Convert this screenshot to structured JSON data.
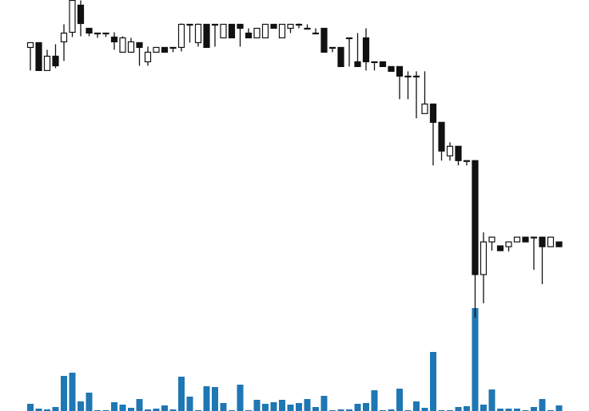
{
  "chart_data": {
    "type": "candlestick",
    "open": [
      341,
      347,
      312,
      330,
      348,
      360,
      394,
      365,
      359,
      359,
      354,
      335,
      335,
      347,
      323,
      335,
      341,
      341,
      341,
      370,
      347,
      370,
      370,
      353,
      370,
      370,
      359,
      353,
      353,
      370,
      353,
      365,
      370,
      365,
      359,
      365,
      341,
      341,
      353,
      323,
      353,
      323,
      323,
      317,
      317,
      305,
      305,
      258,
      270,
      247,
      205,
      217,
      199,
      199,
      56,
      97,
      92,
      91,
      97,
      103,
      103,
      103,
      91,
      97
    ],
    "high": [
      347,
      347,
      338,
      345,
      370,
      400,
      400,
      365,
      359,
      359,
      360,
      355,
      353,
      347,
      342,
      341,
      341,
      341,
      371,
      370,
      371,
      370,
      370,
      370,
      370,
      370,
      365,
      365,
      370,
      370,
      370,
      370,
      371,
      370,
      365,
      365,
      341,
      341,
      353,
      359,
      365,
      323,
      323,
      317,
      317,
      311,
      311,
      311,
      270,
      247,
      222,
      217,
      199,
      199,
      109,
      103,
      92,
      97,
      103,
      103,
      103,
      103,
      103,
      97
    ],
    "low": [
      312,
      312,
      312,
      315,
      324,
      354,
      355,
      355,
      353,
      354,
      338,
      335,
      335,
      318,
      318,
      335,
      335,
      335,
      336,
      347,
      342,
      341,
      342,
      353,
      353,
      342,
      353,
      353,
      353,
      365,
      353,
      359,
      365,
      365,
      359,
      335,
      335,
      317,
      317,
      317,
      312,
      312,
      317,
      311,
      276,
      276,
      252,
      258,
      193,
      199,
      199,
      193,
      193,
      2,
      20,
      86,
      86,
      85,
      97,
      97,
      62,
      44,
      91,
      91
    ],
    "close": [
      347,
      312,
      330,
      318,
      359,
      400,
      371,
      359,
      358,
      358,
      348,
      353,
      348,
      341,
      335,
      341,
      335,
      340,
      370,
      369,
      370,
      341,
      369,
      370,
      353,
      365,
      353,
      365,
      370,
      365,
      370,
      370,
      369,
      364,
      358,
      335,
      340,
      317,
      352,
      317,
      323,
      322,
      317,
      311,
      305,
      304,
      304,
      270,
      247,
      211,
      217,
      199,
      198,
      56,
      97,
      103,
      86,
      97,
      103,
      97,
      102,
      91,
      103,
      91
    ],
    "volume": [
      9,
      3,
      2,
      5,
      44,
      48,
      12,
      23,
      1,
      1,
      11,
      8,
      4,
      15,
      2,
      3,
      7,
      2,
      43,
      18,
      1,
      31,
      30,
      10,
      1,
      33,
      1,
      14,
      9,
      11,
      14,
      8,
      10,
      15,
      5,
      19,
      1,
      2,
      2,
      9,
      10,
      26,
      1,
      2,
      28,
      1,
      12,
      4,
      74,
      1,
      1,
      5,
      6,
      129,
      8,
      27,
      3,
      3,
      3,
      1,
      5,
      15,
      1,
      7
    ],
    "ylim": [
      0,
      400
    ],
    "volume_lim": [
      0,
      130
    ],
    "up_color": "#ffffff",
    "down_color": "#111111",
    "volume_color": "#1f77b4"
  }
}
